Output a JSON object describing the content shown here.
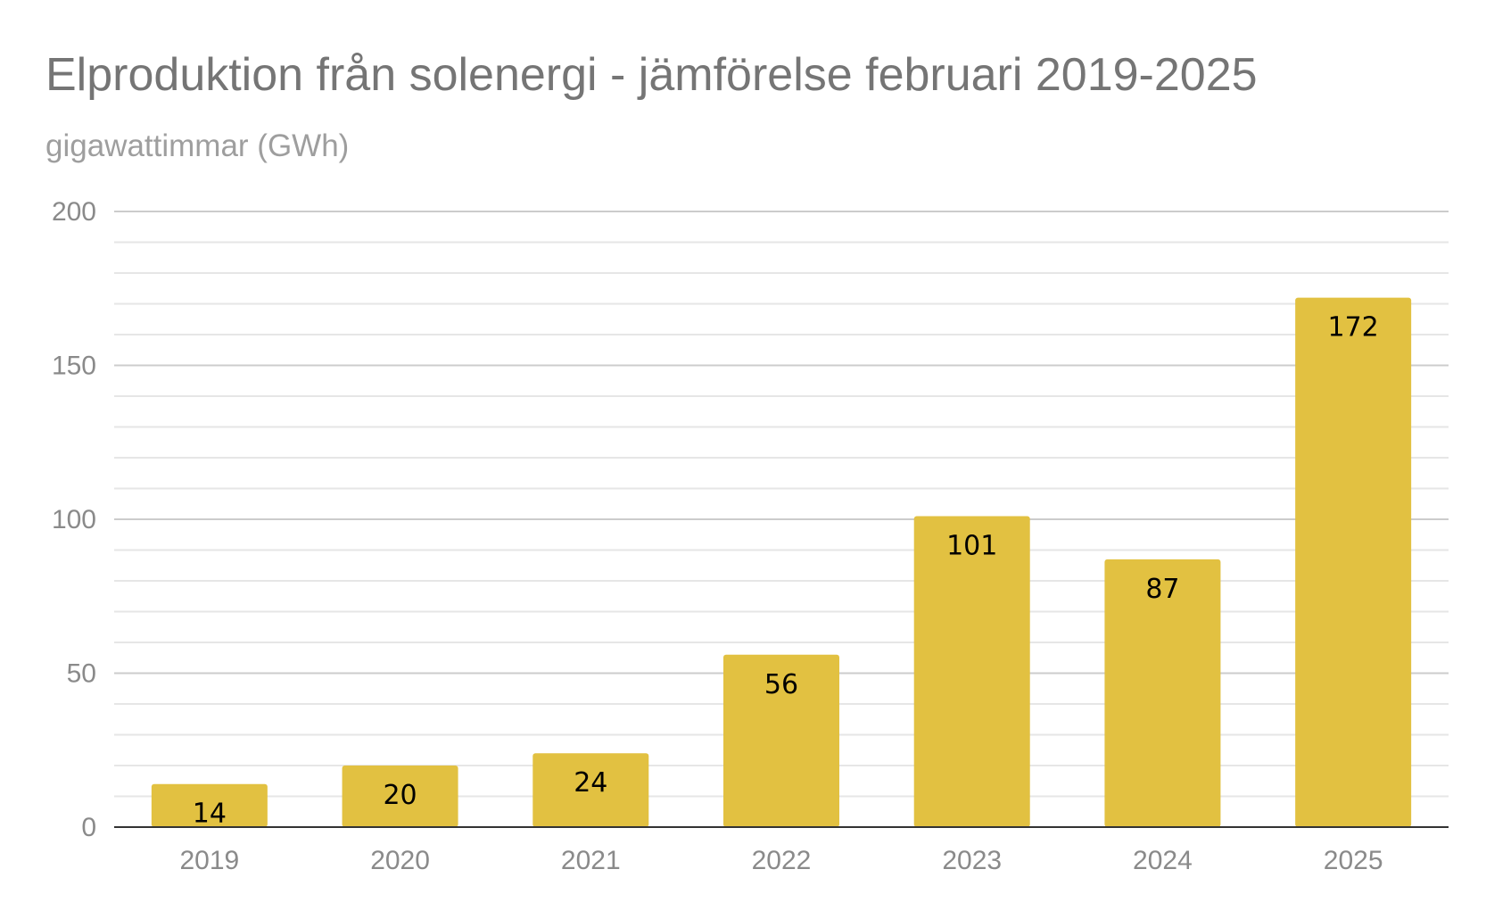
{
  "chart_data": {
    "type": "bar",
    "title": "Elproduktion från solenergi - jämförelse februari 2019-2025",
    "subtitle": "gigawattimmar (GWh)",
    "xlabel": "",
    "ylabel": "",
    "categories": [
      "2019",
      "2020",
      "2021",
      "2022",
      "2023",
      "2024",
      "2025"
    ],
    "values": [
      14,
      20,
      24,
      56,
      101,
      87,
      172
    ],
    "data_labels": [
      "14",
      "20",
      "24",
      "56",
      "101",
      "87",
      "172"
    ],
    "ylim": [
      0,
      200
    ],
    "y_ticks": [
      "0",
      "50",
      "100",
      "150",
      "200"
    ],
    "grid": true,
    "minor_grid": true,
    "legend": "none",
    "colors": {
      "bar": "#E2C141",
      "label_inside": "#000000",
      "label_outside": "#E2C141",
      "major_grid": "#cccccc",
      "minor_grid": "#e6e6e6",
      "baseline": "#333333"
    }
  }
}
